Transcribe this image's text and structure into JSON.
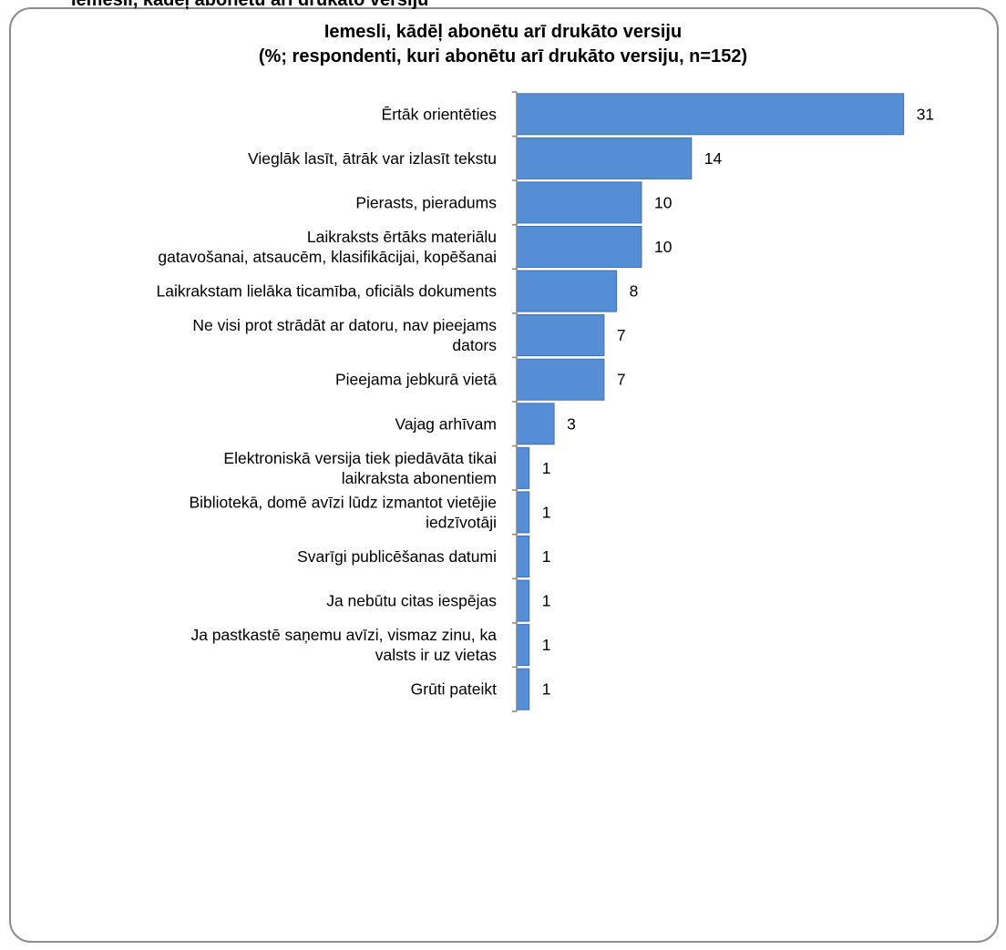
{
  "cut_header": "Iemesli, kādēļ abonētu arī drukāto versiju",
  "chart_data": {
    "type": "bar",
    "orientation": "horizontal",
    "title": [
      "Iemesli, kādēļ abonētu arī drukāto versiju",
      "(%; respondenti, kuri abonētu arī drukāto versiju, n=152)"
    ],
    "categories": [
      [
        "Ērtāk orientēties"
      ],
      [
        "Vieglāk lasīt, ātrāk var izlasīt tekstu"
      ],
      [
        "Pierasts, pieradums"
      ],
      [
        "Laikraksts ērtāks materiālu",
        "gatavošanai, atsaucēm, klasifikācijai, kopēšanai"
      ],
      [
        "Laikrakstam lielāka ticamība, oficiāls dokuments"
      ],
      [
        "Ne visi prot strādāt ar datoru, nav pieejams",
        "dators"
      ],
      [
        "Pieejama jebkurā vietā"
      ],
      [
        "Vajag arhīvam"
      ],
      [
        "Elektroniskā versija tiek piedāvāta tikai",
        "laikraksta abonentiem"
      ],
      [
        "Bibliotekā, domē avīzi lūdz izmantot vietējie",
        "iedzīvotāji"
      ],
      [
        "Svarīgi publicēšanas datumi"
      ],
      [
        "Ja nebūtu citas iespējas"
      ],
      [
        "Ja pastkastē saņemu avīzi, vismaz zinu, ka",
        "valsts ir uz vietas"
      ],
      [
        "Grūti pateikt"
      ]
    ],
    "values": [
      31,
      14,
      10,
      10,
      8,
      7,
      7,
      3,
      1,
      1,
      1,
      1,
      1,
      1
    ],
    "data_labels": [
      "31",
      "14",
      "10",
      "10",
      "8",
      "7",
      "7",
      "3",
      "1",
      "1",
      "1",
      "1",
      "1",
      "1"
    ],
    "bar_color": "#558ed5",
    "bar_border_color": "#3f6fb0",
    "axis_color": "#868686",
    "legend": "none",
    "grid": false
  }
}
